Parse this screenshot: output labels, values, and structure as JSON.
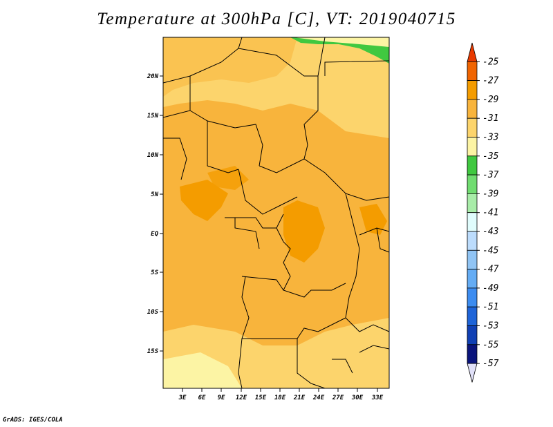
{
  "title": "Temperature at 300hPa [C], VT: 2019040715",
  "credit": "GrADS: IGES/COLA",
  "map": {
    "lat_ticks": [
      "20N",
      "15N",
      "10N",
      "5N",
      "EQ",
      "5S",
      "10S",
      "15S"
    ],
    "lon_ticks": [
      "3E",
      "6E",
      "9E",
      "12E",
      "15E",
      "18E",
      "21E",
      "24E",
      "27E",
      "30E",
      "33E"
    ]
  },
  "colorbar": {
    "labels": [
      "-25",
      "-27",
      "-29",
      "-31",
      "-33",
      "-35",
      "-37",
      "-39",
      "-41",
      "-43",
      "-45",
      "-47",
      "-49",
      "-51",
      "-53",
      "-55",
      "-57"
    ],
    "colors": [
      "#e83a00",
      "#f06400",
      "#f49c00",
      "#f8b43c",
      "#fcd46c",
      "#fcf4a4",
      "#40c840",
      "#70dc70",
      "#a8eca8",
      "#e0fcfc",
      "#bcdcfc",
      "#90c4f4",
      "#64acf4",
      "#3c8cf0",
      "#1e64d8",
      "#1040b4",
      "#0a147c",
      "#e0e0f8"
    ]
  }
}
